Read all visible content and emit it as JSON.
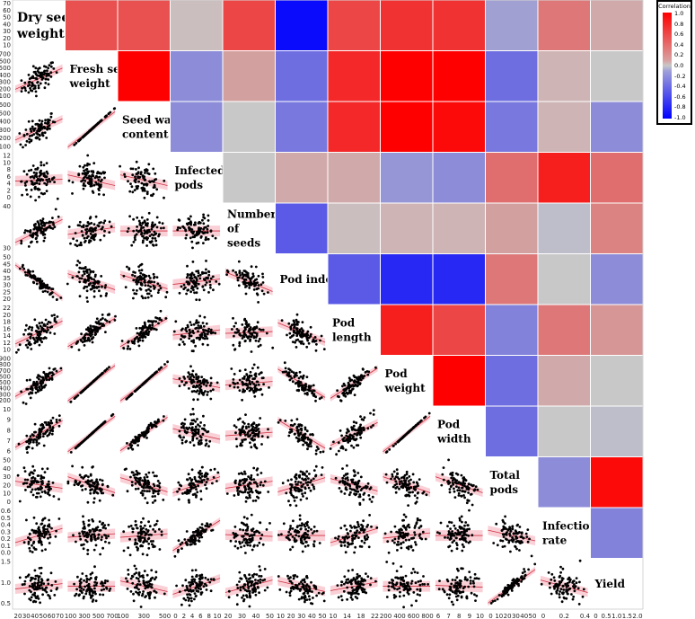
{
  "legend": {
    "title": "Correlation",
    "labels": [
      "1.0",
      "0.8",
      "0.6",
      "0.4",
      "0.2",
      "0.0",
      "-0.2",
      "-0.4",
      "-0.6",
      "-0.8",
      "-1.0"
    ]
  },
  "chart_data": {
    "type": "heatmap",
    "subtype": "scatterplot-matrix",
    "variables": [
      "Dry seed weight",
      "Fresh seed weight",
      "Seed water content",
      "Infected pods",
      "Number of seeds",
      "Pod index",
      "Pod length",
      "Pod weight",
      "Pod width",
      "Total pods",
      "Infection rate",
      "Yield"
    ],
    "diagonal_labels": [
      [
        "Dry seed",
        "weight"
      ],
      [
        "Fresh seed",
        "weight"
      ],
      [
        "Seed water",
        "content"
      ],
      [
        "Infected",
        "pods"
      ],
      [
        "Number",
        "of",
        "seeds"
      ],
      [
        "Pod index"
      ],
      [
        "Pod",
        "length"
      ],
      [
        "Pod",
        "weight"
      ],
      [
        "Pod",
        "width"
      ],
      [
        "Total",
        "pods"
      ],
      [
        "Infection",
        "rate"
      ],
      [
        "Yield"
      ]
    ],
    "correlation_scale": [
      -1.0,
      1.0
    ],
    "correlation_colors": {
      "positive": "#ff0000",
      "zero": "#c8c8c8",
      "negative": "#0000ff"
    },
    "correlations": [
      [
        1.0,
        0.6,
        0.6,
        0.05,
        0.65,
        -0.95,
        0.65,
        0.75,
        0.75,
        -0.2,
        0.4,
        0.15
      ],
      [
        0.6,
        1.0,
        1.0,
        -0.3,
        0.2,
        -0.45,
        0.8,
        1.0,
        1.0,
        -0.45,
        0.1,
        0.0
      ],
      [
        0.6,
        1.0,
        1.0,
        -0.3,
        0.0,
        -0.4,
        0.8,
        1.0,
        0.95,
        -0.4,
        0.1,
        -0.3
      ],
      [
        0.05,
        -0.3,
        -0.3,
        1.0,
        0.0,
        0.15,
        0.15,
        -0.25,
        -0.3,
        0.45,
        0.85,
        0.45
      ],
      [
        0.65,
        0.2,
        0.0,
        0.0,
        1.0,
        -0.55,
        0.05,
        0.1,
        0.1,
        0.2,
        -0.05,
        0.35
      ],
      [
        -0.95,
        -0.45,
        -0.4,
        0.15,
        -0.55,
        1.0,
        -0.55,
        -0.8,
        -0.8,
        0.4,
        0.0,
        -0.3
      ],
      [
        0.65,
        0.8,
        0.8,
        0.15,
        0.05,
        -0.55,
        1.0,
        0.85,
        0.65,
        -0.35,
        0.4,
        0.25
      ],
      [
        0.75,
        1.0,
        1.0,
        -0.25,
        0.1,
        -0.8,
        0.85,
        1.0,
        1.0,
        -0.45,
        0.15,
        0.0
      ],
      [
        0.75,
        1.0,
        0.95,
        -0.3,
        0.1,
        -0.8,
        0.65,
        1.0,
        1.0,
        -0.45,
        0.0,
        -0.05
      ],
      [
        -0.2,
        -0.45,
        -0.4,
        0.45,
        0.2,
        0.4,
        -0.35,
        -0.45,
        -0.45,
        1.0,
        -0.3,
        0.95
      ],
      [
        0.4,
        0.1,
        0.1,
        0.85,
        -0.05,
        0.0,
        0.4,
        0.15,
        0.0,
        -0.3,
        1.0,
        -0.35
      ],
      [
        0.15,
        0.0,
        -0.3,
        0.45,
        0.35,
        -0.3,
        0.25,
        0.0,
        -0.05,
        0.95,
        -0.35,
        1.0
      ]
    ],
    "row_axis_ticks": [
      [
        "70",
        "60",
        "50",
        "40",
        "30",
        "20",
        "10"
      ],
      [
        "700",
        "600",
        "500",
        "400",
        "300",
        "200",
        "100"
      ],
      [
        "600",
        "500",
        "400",
        "300",
        "200",
        "100"
      ],
      [
        "12",
        "10",
        "8",
        "6",
        "4",
        "2",
        "0"
      ],
      [
        "40",
        "30"
      ],
      [
        "50",
        "45",
        "40",
        "35",
        "30",
        "25",
        "20"
      ],
      [
        "22",
        "20",
        "18",
        "16",
        "14",
        "12",
        "10"
      ],
      [
        "900",
        "800",
        "700",
        "600",
        "500",
        "400",
        "300",
        "200"
      ],
      [
        "10",
        "9",
        "8",
        "7",
        "6"
      ],
      [
        "50",
        "40",
        "30",
        "20",
        "10",
        "0"
      ],
      [
        "0.6",
        "0.5",
        "0.4",
        "0.3",
        "0.2",
        "0.1",
        "0.0"
      ],
      [
        "1.5",
        "1.0",
        "0.5"
      ]
    ],
    "col_axis_ticks": [
      [
        "20",
        "30",
        "40",
        "50",
        "60",
        "70"
      ],
      [
        "100",
        "300",
        "500",
        "700"
      ],
      [
        "100",
        "300",
        "500"
      ],
      [
        "0",
        "2",
        "4",
        "6",
        "8",
        "10"
      ],
      [
        "20",
        "30",
        "40",
        "50"
      ],
      [
        "10",
        "20",
        "30",
        "40",
        "50"
      ],
      [
        "10",
        "14",
        "18",
        "22"
      ],
      [
        "200",
        "400",
        "600",
        "800"
      ],
      [
        "6",
        "7",
        "8",
        "9",
        "10"
      ],
      [
        "0",
        "10",
        "20",
        "30",
        "40",
        "50"
      ],
      [
        "0",
        "0.2",
        "0.4"
      ],
      [
        "0",
        "0.5",
        "1.0",
        "1.5",
        "2.0"
      ]
    ]
  }
}
